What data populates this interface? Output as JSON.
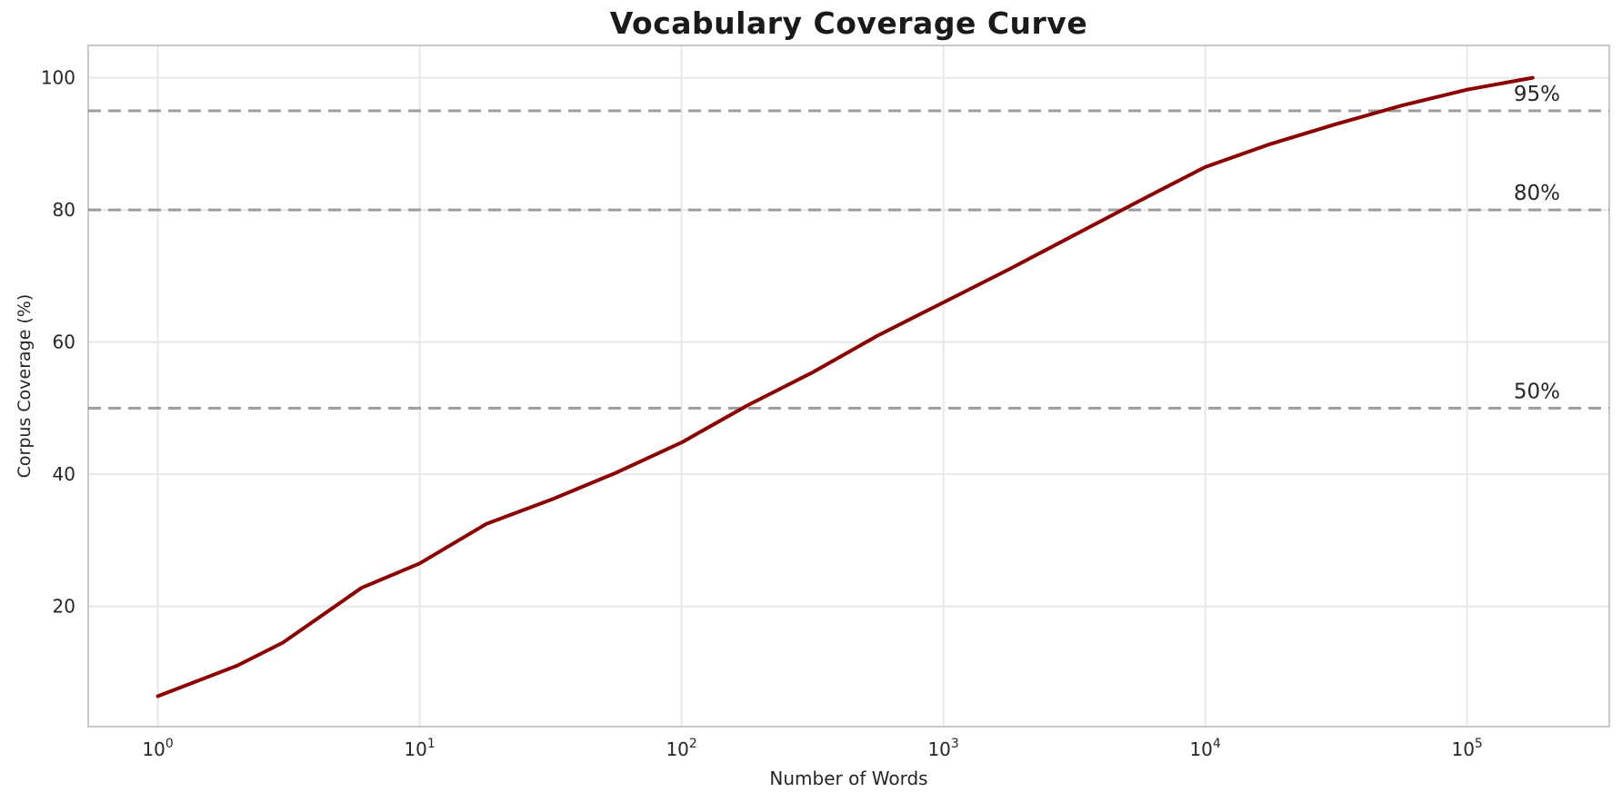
{
  "chart_data": {
    "type": "line",
    "title": "Vocabulary Coverage Curve",
    "xlabel": "Number of Words",
    "ylabel": "Corpus Coverage (%)",
    "x_scale": "log",
    "xlim": [
      0.542,
      349000
    ],
    "ylim": [
      1.8,
      104.9
    ],
    "grid": true,
    "legend": null,
    "x_ticks": [
      {
        "value": 1,
        "base": "10",
        "exp": "0"
      },
      {
        "value": 10,
        "base": "10",
        "exp": "1"
      },
      {
        "value": 100,
        "base": "10",
        "exp": "2"
      },
      {
        "value": 1000,
        "base": "10",
        "exp": "3"
      },
      {
        "value": 10000,
        "base": "10",
        "exp": "4"
      },
      {
        "value": 100000,
        "base": "10",
        "exp": "5"
      }
    ],
    "y_ticks": [
      {
        "value": 20,
        "label": "20"
      },
      {
        "value": 40,
        "label": "40"
      },
      {
        "value": 60,
        "label": "60"
      },
      {
        "value": 80,
        "label": "80"
      },
      {
        "value": 100,
        "label": "100"
      }
    ],
    "series": [
      {
        "name": "vocabulary-coverage",
        "color": "#8B0000",
        "x": [
          1,
          2,
          3,
          6,
          10,
          18,
          32,
          56,
          100,
          178,
          316,
          562,
          1000,
          1778,
          3162,
          5623,
          10000,
          17783,
          31623,
          56234,
          100000,
          177828
        ],
        "y": [
          6.4,
          11,
          14.5,
          22.8,
          26.5,
          32.5,
          36.2,
          40.2,
          44.8,
          50.4,
          55.4,
          61,
          66,
          71,
          76.2,
          81.4,
          86.5,
          90,
          93,
          95.8,
          98.2,
          100
        ]
      }
    ],
    "reference_lines": [
      {
        "value": 95,
        "label": "95%",
        "style": "dashed",
        "color": "#9c9c9c"
      },
      {
        "value": 80,
        "label": "80%",
        "style": "dashed",
        "color": "#9c9c9c"
      },
      {
        "value": 50,
        "label": "50%",
        "style": "dashed",
        "color": "#9c9c9c"
      }
    ],
    "colors": {
      "line": "#8B0000",
      "grid": "#e8e8e8",
      "spine": "#c9c9c9",
      "reference": "#9c9c9c",
      "text": "#262626",
      "title": "#1a1a1a"
    }
  }
}
